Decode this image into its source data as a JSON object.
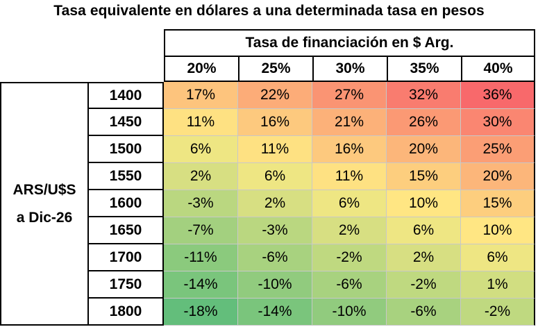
{
  "chart_data": {
    "type": "table",
    "title": "Tasa equivalente en dólares a una determinada tasa en pesos",
    "column_group_label": "Tasa de financiación en $ Arg.",
    "columns": [
      "20%",
      "25%",
      "30%",
      "35%",
      "40%"
    ],
    "row_group_label": [
      "ARS/U$S",
      "a Dic-26"
    ],
    "rows": [
      "1400",
      "1450",
      "1500",
      "1550",
      "1600",
      "1650",
      "1700",
      "1750",
      "1800"
    ],
    "values": [
      [
        17,
        22,
        27,
        32,
        36
      ],
      [
        11,
        16,
        21,
        26,
        30
      ],
      [
        6,
        11,
        16,
        20,
        25
      ],
      [
        2,
        6,
        11,
        15,
        20
      ],
      [
        -3,
        2,
        6,
        10,
        15
      ],
      [
        -7,
        -3,
        2,
        6,
        10
      ],
      [
        -11,
        -6,
        -2,
        2,
        6
      ],
      [
        -14,
        -10,
        -6,
        -2,
        1
      ],
      [
        -18,
        -14,
        -10,
        -6,
        -2
      ]
    ],
    "unit": "%",
    "color_scale": {
      "low": "#63be7b",
      "mid": "#ffeb84",
      "high": "#f8696b"
    }
  }
}
